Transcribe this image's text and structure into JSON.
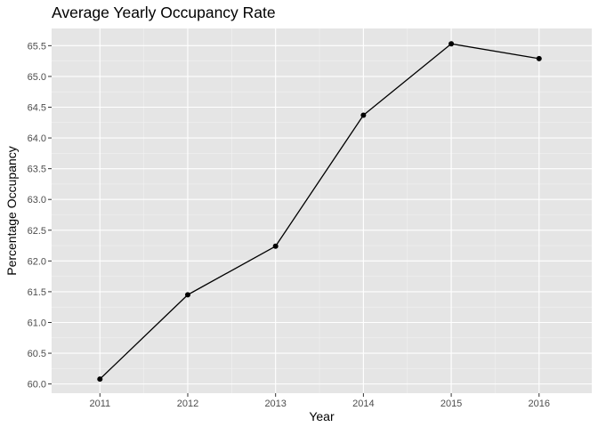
{
  "chart_data": {
    "type": "line",
    "title": "Average Yearly Occupancy Rate",
    "xlabel": "Year",
    "ylabel": "Percentage Occupancy",
    "x": [
      2011,
      2012,
      2013,
      2014,
      2015,
      2016
    ],
    "series": [
      {
        "values": [
          60.08,
          61.45,
          62.24,
          64.37,
          65.53,
          65.29
        ]
      }
    ],
    "x_ticks": [
      "2011",
      "2012",
      "2013",
      "2014",
      "2015",
      "2016"
    ],
    "y_ticks": [
      "60.0",
      "60.5",
      "61.0",
      "61.5",
      "62.0",
      "62.5",
      "63.0",
      "63.5",
      "64.0",
      "64.5",
      "65.0",
      "65.5"
    ],
    "xlim": [
      2010.45,
      2016.6
    ],
    "ylim": [
      59.85,
      65.78
    ],
    "grid": true,
    "legend": "none",
    "colors": {
      "panel_background": "#e5e5e5",
      "grid_major": "#ffffff",
      "line": "#000000",
      "point": "#000000",
      "tick_text": "#4d4d4d",
      "tick_mark": "#333333"
    }
  }
}
